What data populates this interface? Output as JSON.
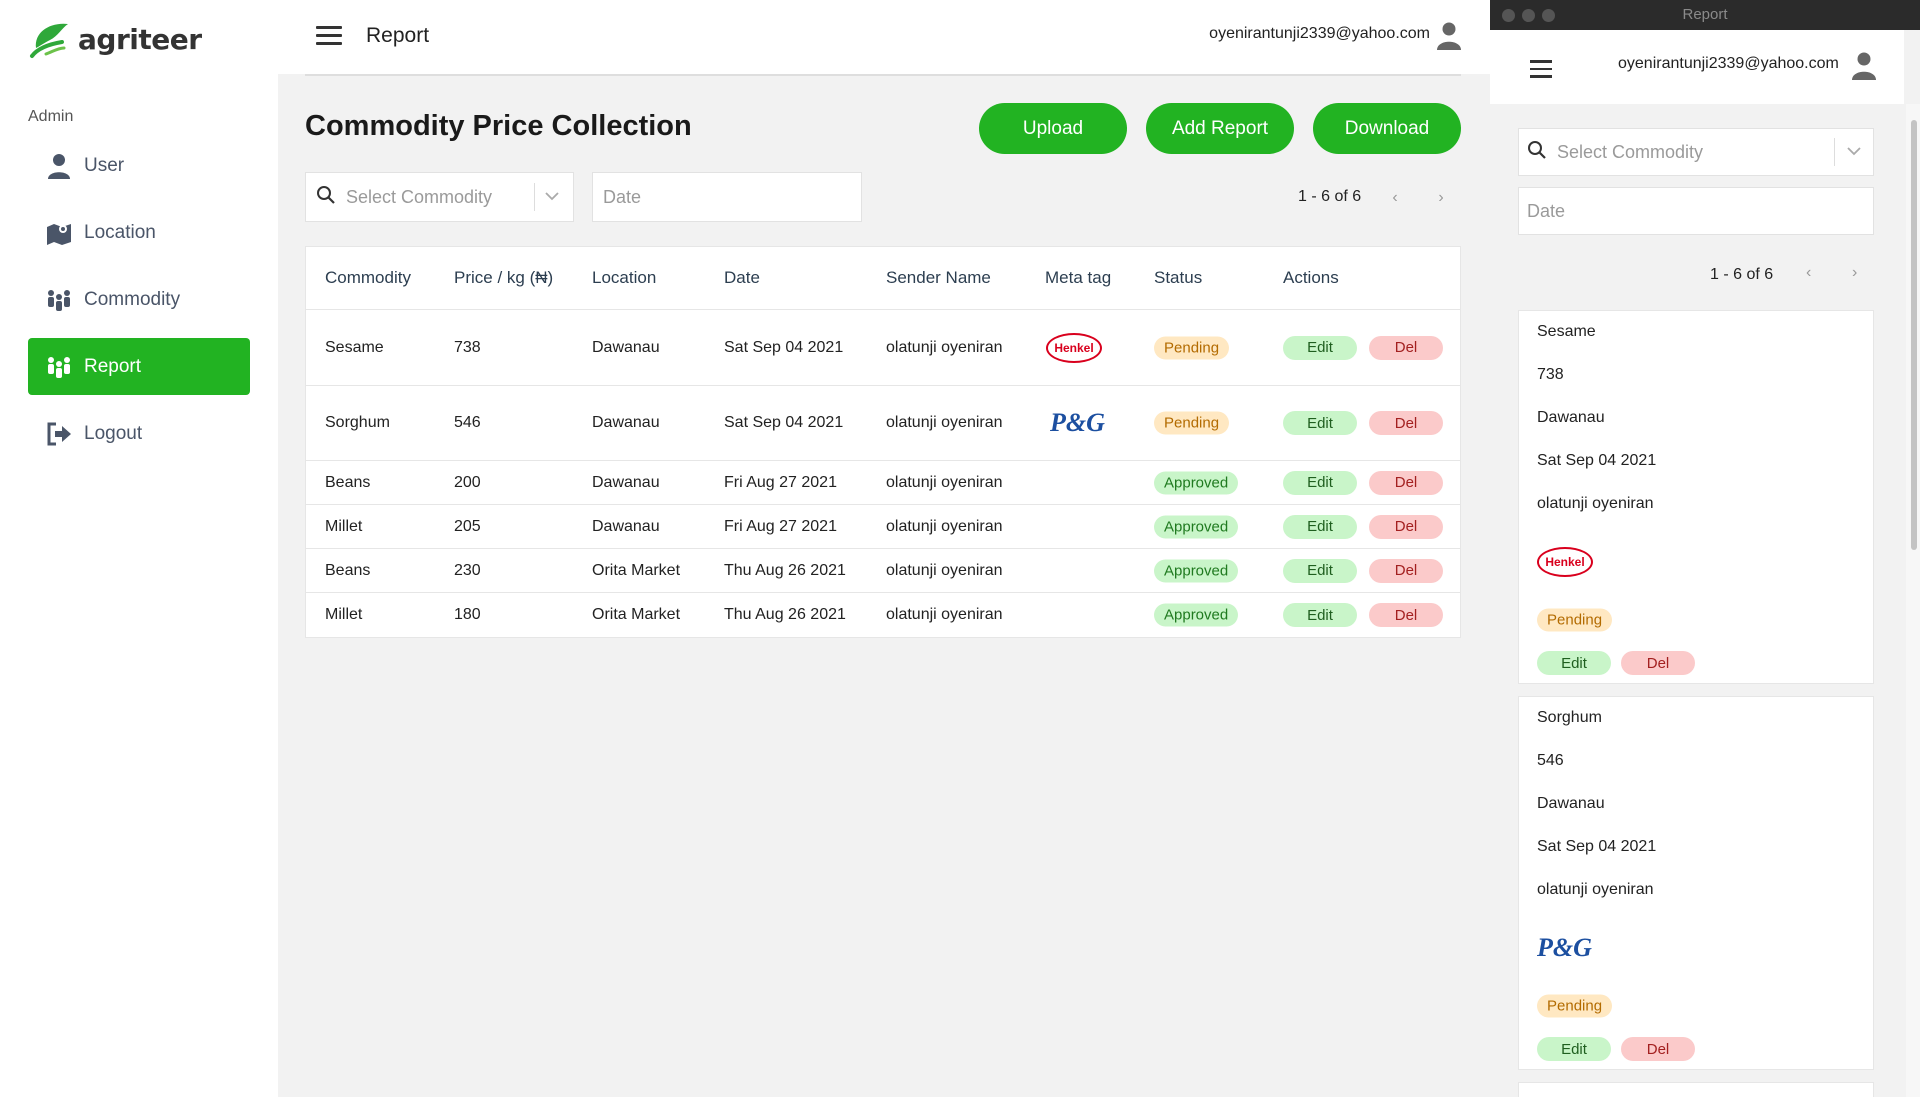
{
  "brand": {
    "name": "agriteer"
  },
  "sidebar": {
    "section": "Admin",
    "items": [
      {
        "label": "User",
        "icon": "user-icon",
        "active": false
      },
      {
        "label": "Location",
        "icon": "map-icon",
        "active": false
      },
      {
        "label": "Commodity",
        "icon": "people-icon",
        "active": false
      },
      {
        "label": "Report",
        "icon": "people-icon",
        "active": true
      },
      {
        "label": "Logout",
        "icon": "logout-icon",
        "active": false
      }
    ]
  },
  "header": {
    "title": "Report",
    "email": "oyenirantunji2339@yahoo.com"
  },
  "main": {
    "title": "Commodity Price Collection",
    "buttons": {
      "upload": "Upload",
      "add_report": "Add Report",
      "download": "Download"
    },
    "filters": {
      "commodity_placeholder": "Select Commodity",
      "date_placeholder": "Date"
    },
    "pager": "1 - 6 of 6",
    "table": {
      "headers": [
        "Commodity",
        "Price / kg (₦)",
        "Location",
        "Date",
        "Sender Name",
        "Meta tag",
        "Status",
        "Actions"
      ],
      "rows": [
        {
          "commodity": "Sesame",
          "price": "738",
          "location": "Dawanau",
          "date": "Sat Sep 04 2021",
          "sender": "olatunji oyeniran",
          "meta": "Henkel",
          "status": "Pending"
        },
        {
          "commodity": "Sorghum",
          "price": "546",
          "location": "Dawanau",
          "date": "Sat Sep 04 2021",
          "sender": "olatunji oyeniran",
          "meta": "P&G",
          "status": "Pending"
        },
        {
          "commodity": "Beans",
          "price": "200",
          "location": "Dawanau",
          "date": "Fri Aug 27 2021",
          "sender": "olatunji oyeniran",
          "meta": "",
          "status": "Approved"
        },
        {
          "commodity": "Millet",
          "price": "205",
          "location": "Dawanau",
          "date": "Fri Aug 27 2021",
          "sender": "olatunji oyeniran",
          "meta": "",
          "status": "Approved"
        },
        {
          "commodity": "Beans",
          "price": "230",
          "location": "Orita Market",
          "date": "Thu Aug 26 2021",
          "sender": "olatunji oyeniran",
          "meta": "",
          "status": "Approved"
        },
        {
          "commodity": "Millet",
          "price": "180",
          "location": "Orita Market",
          "date": "Thu Aug 26 2021",
          "sender": "olatunji oyeniran",
          "meta": "",
          "status": "Approved"
        }
      ],
      "actions": {
        "edit": "Edit",
        "del": "Del"
      }
    }
  },
  "mobile": {
    "window_title": "Report",
    "email": "oyenirantunji2339@yahoo.com",
    "commodity_placeholder": "Select Commodity",
    "date_placeholder": "Date",
    "pager": "1 - 6 of 6",
    "cards": [
      {
        "commodity": "Sesame",
        "price": "738",
        "location": "Dawanau",
        "date": "Sat Sep 04 2021",
        "sender": "olatunji oyeniran",
        "meta": "Henkel",
        "status": "Pending"
      },
      {
        "commodity": "Sorghum",
        "price": "546",
        "location": "Dawanau",
        "date": "Sat Sep 04 2021",
        "sender": "olatunji oyeniran",
        "meta": "P&G",
        "status": "Pending"
      }
    ]
  },
  "colors": {
    "brand_green": "#22b322",
    "pending_bg": "#ffe8c2",
    "approved_bg": "#c9f5c9",
    "del_bg": "#fbcaca"
  }
}
